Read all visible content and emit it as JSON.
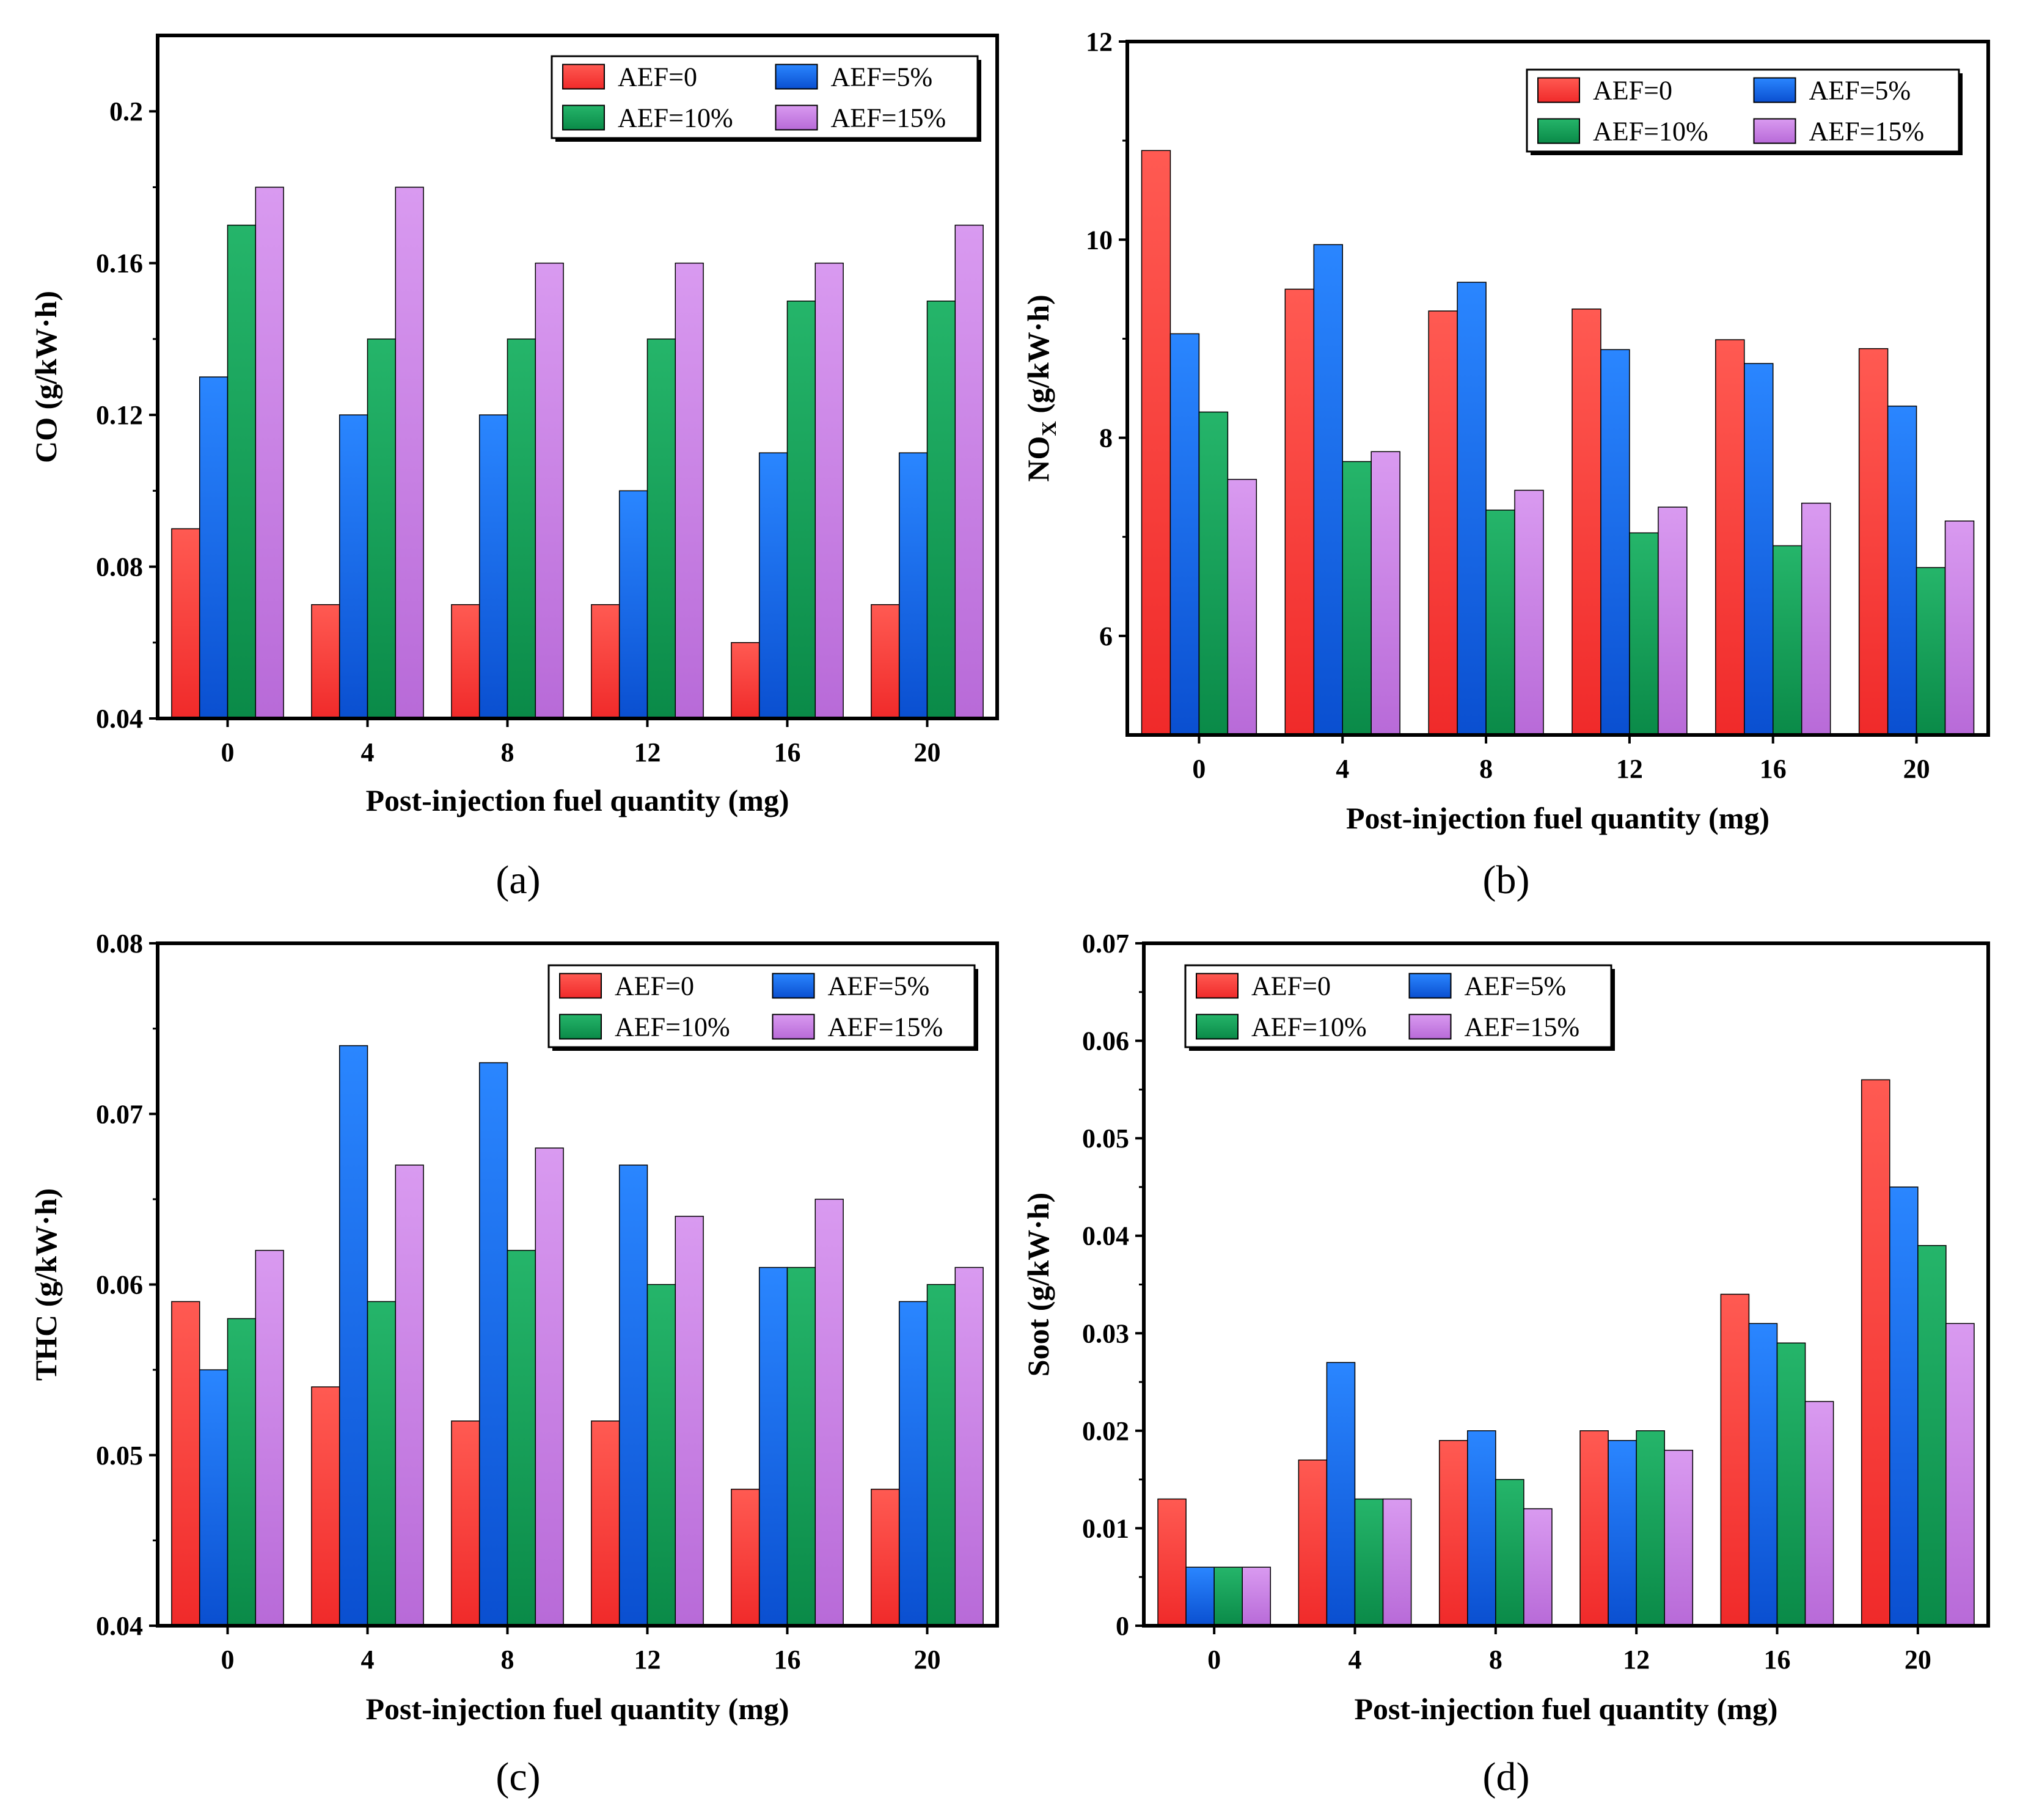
{
  "chart_data": [
    {
      "id": "a",
      "type": "bar",
      "panel_label": "(a)",
      "xlabel": "Post-injection fuel quantity (mg)",
      "ylabel": "CO (g/kW·h)",
      "ylim": [
        0.04,
        0.22
      ],
      "yticks": [
        0.04,
        0.08,
        0.12,
        0.16,
        0.2
      ],
      "ytick_labels": [
        "0.04",
        "0.08",
        "0.12",
        "0.16",
        "0.2"
      ],
      "categories": [
        "0",
        "4",
        "8",
        "12",
        "16",
        "20"
      ],
      "series": [
        {
          "name": "AEF=0",
          "values": [
            0.09,
            0.07,
            0.07,
            0.07,
            0.06,
            0.07
          ]
        },
        {
          "name": "AEF=5%",
          "values": [
            0.13,
            0.12,
            0.12,
            0.1,
            0.11,
            0.11
          ]
        },
        {
          "name": "AEF=10%",
          "values": [
            0.17,
            0.14,
            0.14,
            0.14,
            0.15,
            0.15
          ]
        },
        {
          "name": "AEF=15%",
          "values": [
            0.18,
            0.18,
            0.16,
            0.16,
            0.16,
            0.17
          ]
        }
      ]
    },
    {
      "id": "b",
      "type": "bar",
      "panel_label": "(b)",
      "xlabel": "Post-injection fuel quantity (mg)",
      "ylabel": "NO",
      "ylabel_sub": "X",
      "ylabel_suffix": " (g/kW·h)",
      "ylim": [
        5,
        12
      ],
      "yticks": [
        6,
        8,
        10,
        12
      ],
      "ytick_labels": [
        "6",
        "8",
        "10",
        "12"
      ],
      "categories": [
        "0",
        "4",
        "8",
        "12",
        "16",
        "20"
      ],
      "series": [
        {
          "name": "AEF=0",
          "values": [
            10.9,
            9.5,
            9.28,
            9.3,
            8.99,
            8.9
          ]
        },
        {
          "name": "AEF=5%",
          "values": [
            9.05,
            9.95,
            9.57,
            8.89,
            8.75,
            8.32
          ]
        },
        {
          "name": "AEF=10%",
          "values": [
            8.26,
            7.76,
            7.27,
            7.04,
            6.91,
            6.69
          ]
        },
        {
          "name": "AEF=15%",
          "values": [
            7.58,
            7.86,
            7.47,
            7.3,
            7.34,
            7.16
          ]
        }
      ]
    },
    {
      "id": "c",
      "type": "bar",
      "panel_label": "(c)",
      "xlabel": "Post-injection fuel quantity (mg)",
      "ylabel": "THC (g/kW·h)",
      "ylim": [
        0.04,
        0.08
      ],
      "yticks": [
        0.04,
        0.05,
        0.06,
        0.07,
        0.08
      ],
      "ytick_labels": [
        "0.04",
        "0.05",
        "0.06",
        "0.07",
        "0.08"
      ],
      "categories": [
        "0",
        "4",
        "8",
        "12",
        "16",
        "20"
      ],
      "series": [
        {
          "name": "AEF=0",
          "values": [
            0.059,
            0.054,
            0.052,
            0.052,
            0.048,
            0.048
          ]
        },
        {
          "name": "AEF=5%",
          "values": [
            0.055,
            0.074,
            0.073,
            0.067,
            0.061,
            0.059
          ]
        },
        {
          "name": "AEF=10%",
          "values": [
            0.058,
            0.059,
            0.062,
            0.06,
            0.061,
            0.06
          ]
        },
        {
          "name": "AEF=15%",
          "values": [
            0.062,
            0.067,
            0.068,
            0.064,
            0.065,
            0.061
          ]
        }
      ]
    },
    {
      "id": "d",
      "type": "bar",
      "panel_label": "(d)",
      "xlabel": "Post-injection fuel quantity (mg)",
      "ylabel": "Soot (g/kW·h)",
      "ylim": [
        0,
        0.07
      ],
      "yticks": [
        0,
        0.01,
        0.02,
        0.03,
        0.04,
        0.05,
        0.06,
        0.07
      ],
      "ytick_labels": [
        "0",
        "0.01",
        "0.02",
        "0.03",
        "0.04",
        "0.05",
        "0.06",
        "0.07"
      ],
      "categories": [
        "0",
        "4",
        "8",
        "12",
        "16",
        "20"
      ],
      "series": [
        {
          "name": "AEF=0",
          "values": [
            0.013,
            0.017,
            0.019,
            0.02,
            0.034,
            0.056
          ]
        },
        {
          "name": "AEF=5%",
          "values": [
            0.006,
            0.027,
            0.02,
            0.019,
            0.031,
            0.045
          ]
        },
        {
          "name": "AEF=10%",
          "values": [
            0.006,
            0.013,
            0.015,
            0.02,
            0.029,
            0.039
          ]
        },
        {
          "name": "AEF=15%",
          "values": [
            0.006,
            0.013,
            0.012,
            0.018,
            0.023,
            0.031
          ]
        }
      ]
    }
  ],
  "series_colors": {
    "AEF=0": {
      "top": "#ff5a52",
      "bottom": "#f02a2a"
    },
    "AEF=5%": {
      "top": "#2a86ff",
      "bottom": "#0a4fd0"
    },
    "AEF=10%": {
      "top": "#25b56a",
      "bottom": "#0a8a48"
    },
    "AEF=15%": {
      "top": "#d99af0",
      "bottom": "#b86ad8"
    }
  }
}
